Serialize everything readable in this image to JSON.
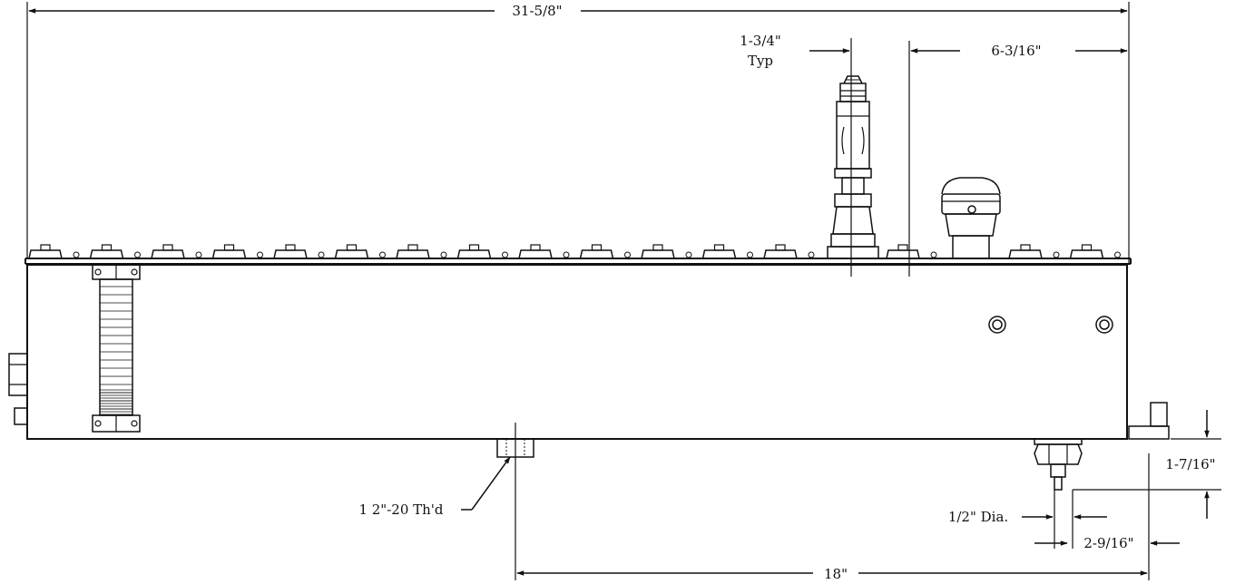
{
  "dimensions": {
    "overall_length": "31-5/8\"",
    "spacing": "1-3/4\"",
    "spacing_note": "Typ",
    "end_offset": "6-3/16\"",
    "thread": "1 2\"-20 Th'd",
    "outlet_diameter": "1/2\" Dia.",
    "outlet_offset": "2-9/16\"",
    "base_span": "18\"",
    "outlet_height": "1-7/16\""
  }
}
